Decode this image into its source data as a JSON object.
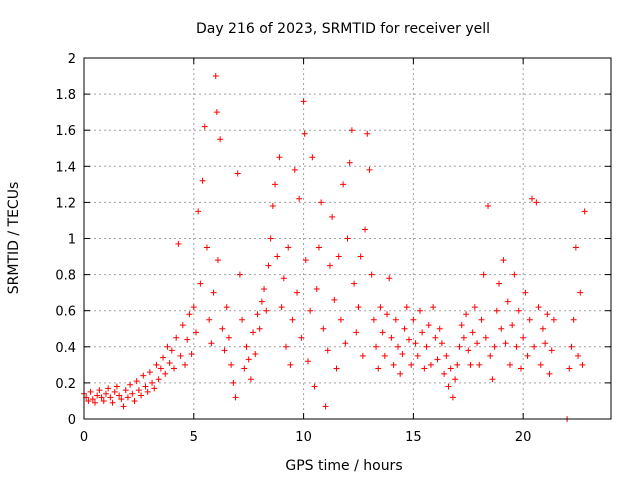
{
  "chart_data": {
    "type": "scatter",
    "title": "Day 216 of 2023, SRMTID for receiver yell",
    "xlabel": "GPS time / hours",
    "ylabel": "SRMTID / TECUs",
    "xlim": [
      0,
      24
    ],
    "ylim": [
      0,
      2
    ],
    "xticks": [
      0,
      5,
      10,
      15,
      20
    ],
    "xtick_labels": [
      "0",
      "5",
      "10",
      "15",
      "20"
    ],
    "yticks": [
      0,
      0.2,
      0.4,
      0.6,
      0.8,
      1,
      1.2,
      1.4,
      1.6,
      1.8,
      2
    ],
    "ytick_labels": [
      "0",
      "0.2",
      "0.4",
      "0.6",
      "0.8",
      "1",
      "1.2",
      "1.4",
      "1.6",
      "1.8",
      "2"
    ],
    "grid": true,
    "marker": "plus",
    "color": "#ff0000",
    "series": [
      {
        "name": "SRMTID",
        "points": [
          [
            0.0,
            0.14
          ],
          [
            0.1,
            0.12
          ],
          [
            0.2,
            0.1
          ],
          [
            0.3,
            0.15
          ],
          [
            0.4,
            0.11
          ],
          [
            0.5,
            0.09
          ],
          [
            0.6,
            0.13
          ],
          [
            0.7,
            0.16
          ],
          [
            0.8,
            0.12
          ],
          [
            0.9,
            0.1
          ],
          [
            1.0,
            0.14
          ],
          [
            1.1,
            0.17
          ],
          [
            1.2,
            0.12
          ],
          [
            1.3,
            0.09
          ],
          [
            1.4,
            0.15
          ],
          [
            1.5,
            0.18
          ],
          [
            1.6,
            0.13
          ],
          [
            1.7,
            0.11
          ],
          [
            1.8,
            0.07
          ],
          [
            1.9,
            0.16
          ],
          [
            2.0,
            0.12
          ],
          [
            2.1,
            0.19
          ],
          [
            2.2,
            0.14
          ],
          [
            2.3,
            0.1
          ],
          [
            2.4,
            0.21
          ],
          [
            2.5,
            0.16
          ],
          [
            2.6,
            0.13
          ],
          [
            2.7,
            0.24
          ],
          [
            2.8,
            0.18
          ],
          [
            2.9,
            0.15
          ],
          [
            3.0,
            0.26
          ],
          [
            3.1,
            0.2
          ],
          [
            3.2,
            0.17
          ],
          [
            3.3,
            0.3
          ],
          [
            3.4,
            0.22
          ],
          [
            3.5,
            0.28
          ],
          [
            3.6,
            0.34
          ],
          [
            3.7,
            0.25
          ],
          [
            3.8,
            0.4
          ],
          [
            3.9,
            0.31
          ],
          [
            4.0,
            0.38
          ],
          [
            4.1,
            0.28
          ],
          [
            4.2,
            0.45
          ],
          [
            4.3,
            0.97
          ],
          [
            4.4,
            0.35
          ],
          [
            4.5,
            0.52
          ],
          [
            4.6,
            0.3
          ],
          [
            4.7,
            0.44
          ],
          [
            4.8,
            0.58
          ],
          [
            4.9,
            0.36
          ],
          [
            5.0,
            0.62
          ],
          [
            5.1,
            0.48
          ],
          [
            5.2,
            1.15
          ],
          [
            5.3,
            0.75
          ],
          [
            5.4,
            1.32
          ],
          [
            5.5,
            1.62
          ],
          [
            5.6,
            0.95
          ],
          [
            5.7,
            0.55
          ],
          [
            5.8,
            0.42
          ],
          [
            5.9,
            0.7
          ],
          [
            6.0,
            1.9
          ],
          [
            6.05,
            1.7
          ],
          [
            6.1,
            0.88
          ],
          [
            6.2,
            1.55
          ],
          [
            6.3,
            0.5
          ],
          [
            6.4,
            0.38
          ],
          [
            6.5,
            0.62
          ],
          [
            6.6,
            0.45
          ],
          [
            6.7,
            0.3
          ],
          [
            6.8,
            0.2
          ],
          [
            6.9,
            0.12
          ],
          [
            7.0,
            1.36
          ],
          [
            7.1,
            0.8
          ],
          [
            7.2,
            0.55
          ],
          [
            7.3,
            0.28
          ],
          [
            7.4,
            0.4
          ],
          [
            7.5,
            0.33
          ],
          [
            7.6,
            0.22
          ],
          [
            7.7,
            0.48
          ],
          [
            7.8,
            0.36
          ],
          [
            7.9,
            0.58
          ],
          [
            8.0,
            0.5
          ],
          [
            8.1,
            0.65
          ],
          [
            8.2,
            0.72
          ],
          [
            8.3,
            0.6
          ],
          [
            8.4,
            0.85
          ],
          [
            8.5,
            1.0
          ],
          [
            8.6,
            1.18
          ],
          [
            8.7,
            1.3
          ],
          [
            8.8,
            0.9
          ],
          [
            8.9,
            1.45
          ],
          [
            9.0,
            0.62
          ],
          [
            9.1,
            0.78
          ],
          [
            9.2,
            0.4
          ],
          [
            9.3,
            0.95
          ],
          [
            9.4,
            0.3
          ],
          [
            9.5,
            0.55
          ],
          [
            9.6,
            1.38
          ],
          [
            9.7,
            0.7
          ],
          [
            9.8,
            1.22
          ],
          [
            9.9,
            0.45
          ],
          [
            10.0,
            1.76
          ],
          [
            10.05,
            1.58
          ],
          [
            10.1,
            0.88
          ],
          [
            10.2,
            0.32
          ],
          [
            10.3,
            0.6
          ],
          [
            10.4,
            1.45
          ],
          [
            10.5,
            0.18
          ],
          [
            10.6,
            0.72
          ],
          [
            10.7,
            0.95
          ],
          [
            10.8,
            1.2
          ],
          [
            10.9,
            0.5
          ],
          [
            11.0,
            0.07
          ],
          [
            11.1,
            0.38
          ],
          [
            11.2,
            0.85
          ],
          [
            11.3,
            1.12
          ],
          [
            11.4,
            0.66
          ],
          [
            11.5,
            0.28
          ],
          [
            11.6,
            0.9
          ],
          [
            11.7,
            0.55
          ],
          [
            11.8,
            1.3
          ],
          [
            11.9,
            0.42
          ],
          [
            12.0,
            1.0
          ],
          [
            12.1,
            1.42
          ],
          [
            12.2,
            1.6
          ],
          [
            12.3,
            0.75
          ],
          [
            12.4,
            0.48
          ],
          [
            12.5,
            0.62
          ],
          [
            12.6,
            0.9
          ],
          [
            12.7,
            0.35
          ],
          [
            12.8,
            1.05
          ],
          [
            12.9,
            1.58
          ],
          [
            13.0,
            1.38
          ],
          [
            13.1,
            0.8
          ],
          [
            13.2,
            0.55
          ],
          [
            13.3,
            0.4
          ],
          [
            13.4,
            0.28
          ],
          [
            13.5,
            0.62
          ],
          [
            13.6,
            0.48
          ],
          [
            13.7,
            0.35
          ],
          [
            13.8,
            0.58
          ],
          [
            13.9,
            0.78
          ],
          [
            14.0,
            0.45
          ],
          [
            14.1,
            0.3
          ],
          [
            14.2,
            0.55
          ],
          [
            14.3,
            0.4
          ],
          [
            14.4,
            0.25
          ],
          [
            14.5,
            0.36
          ],
          [
            14.6,
            0.5
          ],
          [
            14.7,
            0.62
          ],
          [
            14.8,
            0.44
          ],
          [
            14.9,
            0.3
          ],
          [
            15.0,
            0.55
          ],
          [
            15.1,
            0.42
          ],
          [
            15.2,
            0.35
          ],
          [
            15.3,
            0.6
          ],
          [
            15.4,
            0.48
          ],
          [
            15.5,
            0.28
          ],
          [
            15.6,
            0.4
          ],
          [
            15.7,
            0.52
          ],
          [
            15.8,
            0.3
          ],
          [
            15.9,
            0.62
          ],
          [
            16.0,
            0.45
          ],
          [
            16.1,
            0.33
          ],
          [
            16.2,
            0.5
          ],
          [
            16.3,
            0.42
          ],
          [
            16.4,
            0.25
          ],
          [
            16.5,
            0.35
          ],
          [
            16.6,
            0.18
          ],
          [
            16.7,
            0.28
          ],
          [
            16.8,
            0.12
          ],
          [
            16.9,
            0.22
          ],
          [
            17.0,
            0.3
          ],
          [
            17.1,
            0.4
          ],
          [
            17.2,
            0.52
          ],
          [
            17.3,
            0.45
          ],
          [
            17.4,
            0.58
          ],
          [
            17.5,
            0.38
          ],
          [
            17.6,
            0.3
          ],
          [
            17.7,
            0.48
          ],
          [
            17.8,
            0.62
          ],
          [
            17.9,
            0.42
          ],
          [
            18.0,
            0.3
          ],
          [
            18.1,
            0.55
          ],
          [
            18.2,
            0.8
          ],
          [
            18.3,
            0.45
          ],
          [
            18.4,
            1.18
          ],
          [
            18.5,
            0.35
          ],
          [
            18.6,
            0.22
          ],
          [
            18.7,
            0.4
          ],
          [
            18.8,
            0.6
          ],
          [
            18.9,
            0.75
          ],
          [
            19.0,
            0.5
          ],
          [
            19.1,
            0.88
          ],
          [
            19.2,
            0.42
          ],
          [
            19.3,
            0.65
          ],
          [
            19.4,
            0.3
          ],
          [
            19.5,
            0.52
          ],
          [
            19.6,
            0.8
          ],
          [
            19.7,
            0.4
          ],
          [
            19.8,
            0.6
          ],
          [
            19.9,
            0.28
          ],
          [
            20.0,
            0.45
          ],
          [
            20.1,
            0.7
          ],
          [
            20.2,
            0.35
          ],
          [
            20.3,
            0.55
          ],
          [
            20.4,
            1.22
          ],
          [
            20.5,
            0.4
          ],
          [
            20.6,
            1.2
          ],
          [
            20.7,
            0.62
          ],
          [
            20.8,
            0.3
          ],
          [
            20.9,
            0.5
          ],
          [
            21.0,
            0.42
          ],
          [
            21.1,
            0.58
          ],
          [
            21.2,
            0.25
          ],
          [
            21.3,
            0.38
          ],
          [
            21.4,
            0.55
          ],
          [
            22.0,
            0.0
          ],
          [
            22.1,
            0.28
          ],
          [
            22.2,
            0.4
          ],
          [
            22.3,
            0.55
          ],
          [
            22.4,
            0.95
          ],
          [
            22.5,
            0.35
          ],
          [
            22.6,
            0.7
          ],
          [
            22.7,
            0.3
          ],
          [
            22.8,
            1.15
          ]
        ]
      }
    ]
  }
}
